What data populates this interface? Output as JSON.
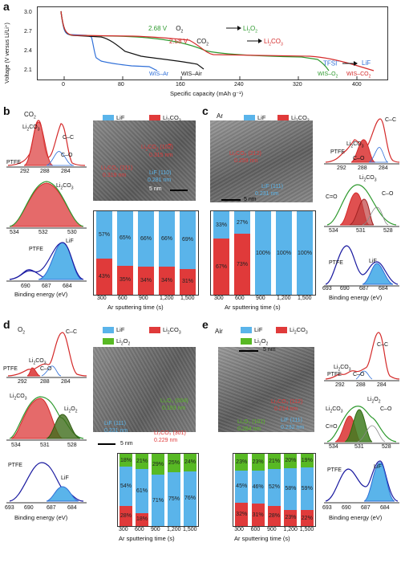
{
  "colors": {
    "lif": "#5ab4ea",
    "li2co3": "#e03a3a",
    "li2o2": "#58b924",
    "red_line": "#d42a2a",
    "green_line": "#2f9a2f",
    "blue_line": "#2f6fd8",
    "black_line": "#111111"
  },
  "panels": {
    "a": "a",
    "b": "b",
    "c": "c",
    "d": "d",
    "e": "e"
  },
  "panel_a": {
    "ylabel": "Voltage (V versus Li/Li⁺)",
    "xlabel": "Specific capacity (mAh g⁻¹)",
    "yticks": [
      "3.0",
      "2.7",
      "2.4",
      "2.1"
    ],
    "xticks": [
      "0",
      "80",
      "160",
      "240",
      "320",
      "400"
    ],
    "ann1_v": "2.68 V",
    "ann1_a": "O",
    "ann1_a_sub": "2",
    "ann1_b": "Li",
    "ann1_b_sub": "2",
    "ann1_b_tail": "O",
    "ann1_b_sub2": "2",
    "ann2_v": "2.58 V",
    "ann2_a": "CO",
    "ann2_a_sub": "2",
    "ann2_b": "Li",
    "ann2_b_sub": "2",
    "ann2_b_tail": "CO",
    "ann2_b_sub2": "3",
    "ann3_a": "TFSI",
    "ann3_a_sup": "−",
    "ann3_b": "LiF",
    "lbl_wis_ar": "WIS–Ar",
    "lbl_wis_air": "WIS–Air",
    "lbl_wis_o2": "WIS–O",
    "lbl_wis_o2_sub": "2",
    "lbl_wis_co2": "WIS–CO",
    "lbl_wis_co2_sub": "2"
  },
  "common": {
    "lif": "LiF",
    "li2co3": "Li",
    "li2co3_sub": "2",
    "li2co3_tail": "CO",
    "li2co3_sub2": "3",
    "li2o2": "Li",
    "li2o2_sub": "2",
    "li2o2_tail": "O",
    "li2o2_sub2": "2",
    "ptfe": "PTFE",
    "cc": "C–C",
    "co": "C–O",
    "ceqo": "C=O",
    "binding": "Binding energy (eV)",
    "sputter": "Ar sputtering time (s)",
    "scale": "5 nm",
    "times": [
      "300",
      "600",
      "900",
      "1,200",
      "1,500"
    ]
  },
  "panel_b": {
    "gas": "CO",
    "gas_sub": "2",
    "xps_top_ticks": [
      "292",
      "288",
      "284"
    ],
    "xps_mid_ticks": [
      "534",
      "532",
      "530"
    ],
    "xps_bot_ticks": [
      "690",
      "687",
      "684"
    ],
    "tem1": "Li",
    "tem1_b": "CO",
    "tem1_c": "(10",
    "tem1_d": "2)",
    "tem1_e": "0.315 nm",
    "tem2": "Li₂CO₃ (211)",
    "tem2_b": "0.319 nm",
    "tem3": "LiF (110)",
    "tem3_b": "0.281 nm",
    "lif_pct": [
      "57%",
      "65%",
      "66%",
      "66%",
      "69%"
    ],
    "li2co3_pct": [
      "43%",
      "35%",
      "34%",
      "34%",
      "31%"
    ]
  },
  "panel_c": {
    "gas": "Ar",
    "xps_top_ticks": [
      "292",
      "288",
      "284"
    ],
    "xps_mid_ticks": [
      "534",
      "531",
      "528"
    ],
    "xps_bot_ticks": [
      "693",
      "690",
      "687",
      "684"
    ],
    "tem1": "Li₂CO₃ (212)",
    "tem1_b": "0.259 nm",
    "tem2": "LiF (111)",
    "tem2_b": "0.231 nm",
    "lif_pct": [
      "33%",
      "27%",
      "100%",
      "100%",
      "100%"
    ],
    "li2co3_pct": [
      "67%",
      "73%",
      "",
      "",
      ""
    ]
  },
  "panel_d": {
    "gas": "O",
    "gas_sub": "2",
    "xps_top_ticks": [
      "292",
      "288",
      "284"
    ],
    "xps_mid_ticks": [
      "534",
      "531",
      "528"
    ],
    "xps_bot_ticks": [
      "693",
      "690",
      "687",
      "684"
    ],
    "tem1": "Li₂O₂ (004)",
    "tem1_b": "0.193 nm",
    "tem2": "LiF (111)",
    "tem2_b": "0.231 nm",
    "tem3": "Li₂CO₃ (301)",
    "tem3_b": "0.229 nm",
    "li2o2_pct": [
      "18%",
      "21%",
      "29%",
      "25%",
      "24%"
    ],
    "lif_pct": [
      "54%",
      "61%",
      "71%",
      "75%",
      "76%"
    ],
    "li2co3_pct": [
      "28%",
      "18%",
      "",
      "",
      ""
    ]
  },
  "panel_e": {
    "gas": "Air",
    "xps_top_ticks": [
      "292",
      "288",
      "284"
    ],
    "xps_mid_ticks": [
      "534",
      "531",
      "528"
    ],
    "xps_bot_ticks": [
      "693",
      "690",
      "687",
      "684"
    ],
    "tem1": "Li₂CO₃ (112)",
    "tem1_b": "0.214 nm",
    "tem2": "Li₂O₂ (101)",
    "tem2_b": "0.264 nm",
    "tem3": "LiF (111)",
    "tem3_b": "0.232 nm",
    "li2o2_pct": [
      "23%",
      "23%",
      "21%",
      "20%",
      "19%"
    ],
    "lif_pct": [
      "45%",
      "46%",
      "52%",
      "58%",
      "59%"
    ],
    "li2co3_pct": [
      "32%",
      "31%",
      "28%",
      "23%",
      "22%"
    ]
  }
}
